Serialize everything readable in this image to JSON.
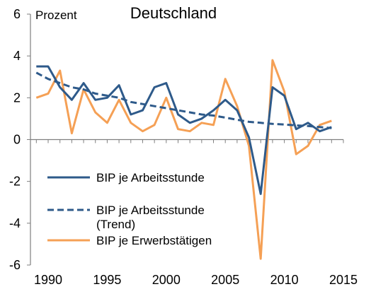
{
  "chart_data": {
    "type": "line",
    "title": "Deutschland",
    "ylabel": "Prozent",
    "xlabel": "",
    "xlim": [
      1988.5,
      2015
    ],
    "ylim": [
      -6,
      6
    ],
    "x_ticks": [
      1990,
      1995,
      2000,
      2005,
      2010,
      2015
    ],
    "y_ticks": [
      -6,
      -4,
      -2,
      0,
      2,
      4,
      6
    ],
    "legend_position": "bottom-left",
    "grid": false,
    "series": [
      {
        "name": "BIP je Arbeitsstunde",
        "color": "#2e5a8a",
        "line_style": "solid",
        "x": [
          1989,
          1990,
          1991,
          1992,
          1993,
          1994,
          1995,
          1996,
          1997,
          1998,
          1999,
          2000,
          2001,
          2002,
          2003,
          2004,
          2005,
          2006,
          2007,
          2008,
          2009,
          2010,
          2011,
          2012,
          2013,
          2014
        ],
        "values": [
          3.5,
          3.5,
          2.5,
          1.9,
          2.7,
          1.9,
          2.0,
          2.6,
          1.2,
          1.4,
          2.5,
          2.7,
          1.2,
          0.8,
          1.0,
          1.4,
          1.9,
          1.4,
          0.1,
          -2.6,
          2.5,
          2.1,
          0.5,
          0.8,
          0.4,
          0.6
        ]
      },
      {
        "name": "BIP je Arbeitsstunde (Trend)",
        "name_lines": [
          "BIP je Arbeitsstunde",
          "(Trend)"
        ],
        "color": "#2e5a8a",
        "line_style": "dashed",
        "x": [
          1989,
          1990,
          1991,
          1992,
          1993,
          1994,
          1995,
          1996,
          1997,
          1998,
          1999,
          2000,
          2001,
          2002,
          2003,
          2004,
          2005,
          2006,
          2007,
          2008,
          2009,
          2010,
          2011,
          2012,
          2013,
          2014
        ],
        "values": [
          3.2,
          2.9,
          2.7,
          2.5,
          2.4,
          2.2,
          2.1,
          2.0,
          1.8,
          1.7,
          1.6,
          1.5,
          1.4,
          1.3,
          1.2,
          1.15,
          1.05,
          0.95,
          0.85,
          0.8,
          0.75,
          0.72,
          0.68,
          0.65,
          0.6,
          0.55
        ]
      },
      {
        "name": "BIP je Erwerbstätigen",
        "color": "#f5a055",
        "line_style": "solid",
        "x": [
          1989,
          1990,
          1991,
          1992,
          1993,
          1994,
          1995,
          1996,
          1997,
          1998,
          1999,
          2000,
          2001,
          2002,
          2003,
          2004,
          2005,
          2006,
          2007,
          2008,
          2009,
          2010,
          2011,
          2012,
          2013,
          2014
        ],
        "values": [
          2.0,
          2.2,
          3.3,
          0.3,
          2.4,
          1.3,
          0.8,
          1.9,
          0.8,
          0.4,
          0.7,
          2.0,
          0.5,
          0.4,
          0.8,
          0.7,
          2.9,
          1.6,
          -0.3,
          -5.7,
          3.8,
          2.3,
          -0.7,
          -0.3,
          0.7,
          0.9
        ]
      }
    ]
  }
}
